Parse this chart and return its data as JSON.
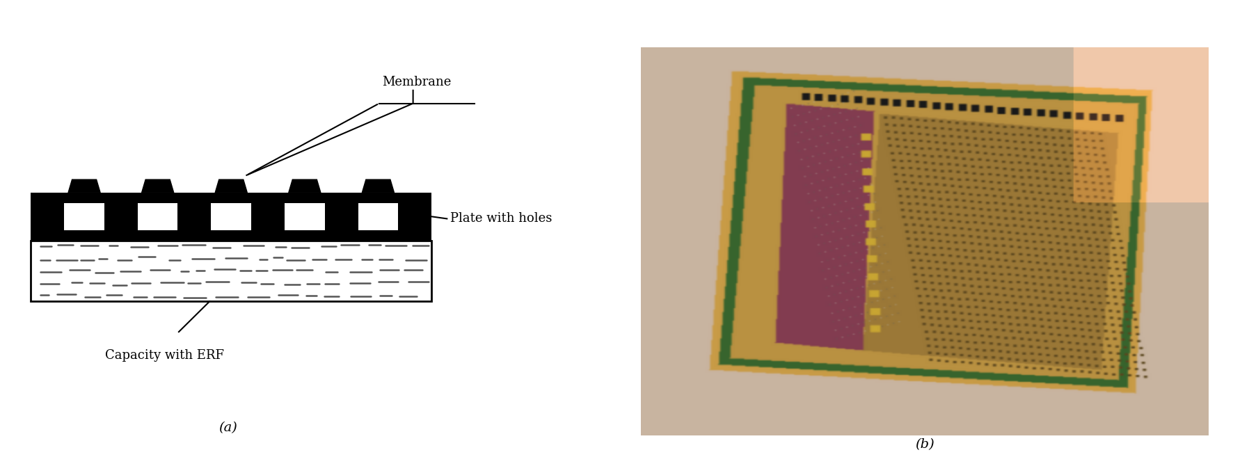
{
  "fig_width": 17.72,
  "fig_height": 6.8,
  "bg_color": "#ffffff",
  "label_a": "(a)",
  "label_b": "(b)",
  "annotation_membrane": "Membrane",
  "annotation_plate": "Plate with holes",
  "annotation_capacity": "Capacity with ERF"
}
